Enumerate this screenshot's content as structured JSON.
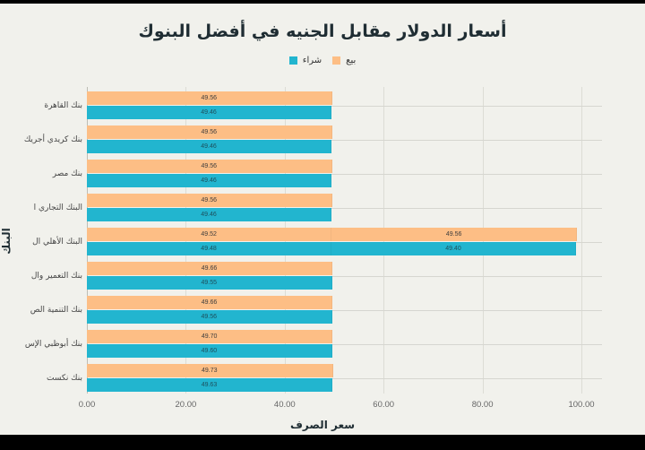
{
  "colors": {
    "sell": "#fdbe85",
    "buy": "#22b5cf",
    "background": "#f1f1ec",
    "title": "#1f2d33"
  },
  "chart_data": {
    "type": "bar",
    "orientation": "horizontal",
    "stacked": true,
    "title": "أسعار الدولار مقابل الجنيه في أفضل البنوك",
    "xlabel": "سعر الصرف",
    "ylabel": "البنك",
    "xlim": [
      0,
      100
    ],
    "xticks": [
      "0.00",
      "20.00",
      "40.00",
      "60.00",
      "80.00",
      "100.00"
    ],
    "grid": true,
    "legend": {
      "position": "top",
      "entries": [
        "بيع",
        "شراء"
      ]
    },
    "categories": [
      "بنك القاهرة",
      "بنك كريدي أجريك",
      "بنك مصر",
      "البنك التجاري ا",
      "البنك الأهلي ال",
      "بنك التعمير وال",
      "بنك التنمية الص",
      "بنك أبوظبي الإس",
      "بنك نكست"
    ],
    "series": [
      {
        "name": "بيع",
        "values": [
          49.56,
          49.56,
          49.56,
          49.56,
          [
            49.52,
            49.56
          ],
          49.66,
          49.66,
          49.7,
          49.73
        ]
      },
      {
        "name": "شراء",
        "values": [
          49.46,
          49.46,
          49.46,
          49.46,
          [
            49.48,
            49.4
          ],
          49.55,
          49.56,
          49.6,
          49.63
        ]
      }
    ]
  },
  "legend": {
    "sell_label": "بيع",
    "buy_label": "شراء"
  },
  "axis": {
    "x_title": "سعر الصرف",
    "y_title": "البنك",
    "x_ticks": [
      "0.00",
      "20.00",
      "40.00",
      "60.00",
      "80.00",
      "100.00"
    ]
  },
  "rows": [
    {
      "label": "بنك القاهرة",
      "sell": [
        "49.56"
      ],
      "buy": [
        "49.46"
      ]
    },
    {
      "label": "بنك كريدي أجريك",
      "sell": [
        "49.56"
      ],
      "buy": [
        "49.46"
      ]
    },
    {
      "label": "بنك مصر",
      "sell": [
        "49.56"
      ],
      "buy": [
        "49.46"
      ]
    },
    {
      "label": "البنك التجاري ا",
      "sell": [
        "49.56"
      ],
      "buy": [
        "49.46"
      ]
    },
    {
      "label": "البنك الأهلي ال",
      "sell": [
        "49.52",
        "49.56"
      ],
      "buy": [
        "49.48",
        "49.40"
      ]
    },
    {
      "label": "بنك التعمير وال",
      "sell": [
        "49.66"
      ],
      "buy": [
        "49.55"
      ]
    },
    {
      "label": "بنك التنمية الص",
      "sell": [
        "49.66"
      ],
      "buy": [
        "49.56"
      ]
    },
    {
      "label": "بنك أبوظبي الإس",
      "sell": [
        "49.70"
      ],
      "buy": [
        "49.60"
      ]
    },
    {
      "label": "بنك نكست",
      "sell": [
        "49.73"
      ],
      "buy": [
        "49.63"
      ]
    }
  ]
}
